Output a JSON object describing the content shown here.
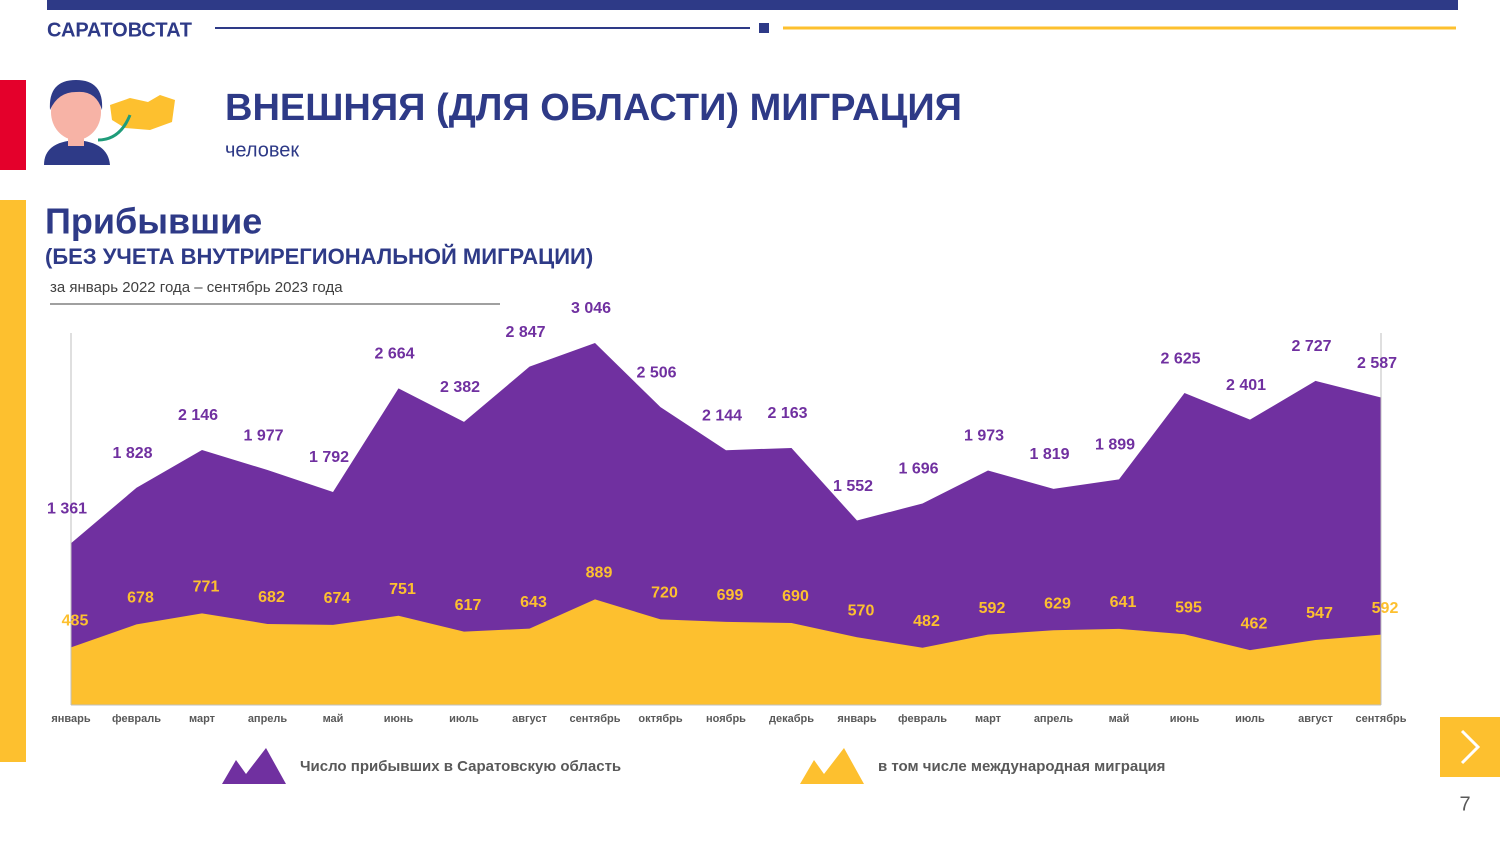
{
  "header": {
    "org": "САРАТОВСТАТ",
    "title": "ВНЕШНЯЯ (ДЛЯ ОБЛАСТИ) МИГРАЦИЯ",
    "unit": "человек"
  },
  "page_number": "7",
  "chart_data": {
    "type": "area",
    "title": "Прибывшие",
    "subtitle": "(БЕЗ УЧЕТА ВНУТРИРЕГИОНАЛЬНОЙ МИГРАЦИИ)",
    "period": "за январь 2022 года – сентябрь 2023 года",
    "categories": [
      "январь",
      "февраль",
      "март",
      "апрель",
      "май",
      "июнь",
      "июль",
      "август",
      "сентябрь",
      "октябрь",
      "ноябрь",
      "декабрь",
      "январь",
      "февраль",
      "март",
      "апрель",
      "май",
      "июнь",
      "июль",
      "август",
      "сентябрь"
    ],
    "series": [
      {
        "name": "Число прибывших в Саратовскую область",
        "color": "#7030a0",
        "values": [
          1361,
          1828,
          2146,
          1977,
          1792,
          2664,
          2382,
          2847,
          3046,
          2506,
          2144,
          2163,
          1552,
          1696,
          1973,
          1819,
          1899,
          2625,
          2401,
          2727,
          2587
        ],
        "value_labels": [
          "1 361",
          "1 828",
          "2 146",
          "1 977",
          "1 792",
          "2 664",
          "2 382",
          "2 847",
          "3 046",
          "2 506",
          "2 144",
          "2 163",
          "1 552",
          "1 696",
          "1 973",
          "1 819",
          "1 899",
          "2 625",
          "2 401",
          "2 727",
          "2 587"
        ]
      },
      {
        "name": "в том числе международная миграция",
        "color": "#fdc02f",
        "values": [
          485,
          678,
          771,
          682,
          674,
          751,
          617,
          643,
          889,
          720,
          699,
          690,
          570,
          482,
          592,
          629,
          641,
          595,
          462,
          547,
          592
        ]
      }
    ]
  }
}
